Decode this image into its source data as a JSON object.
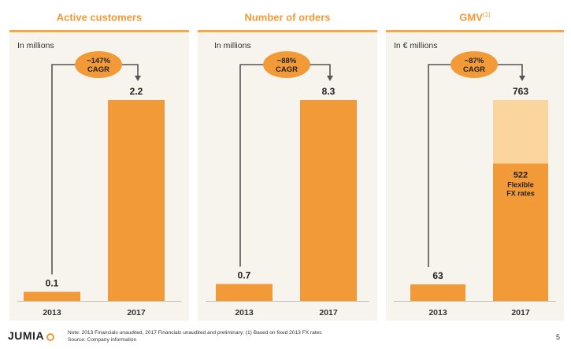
{
  "chart_data": [
    {
      "type": "bar",
      "title": "Active customers",
      "title_sup": "",
      "unit_label": "In millions",
      "categories": [
        "2013",
        "2017"
      ],
      "values": [
        0.1,
        2.2
      ],
      "value_labels": [
        "0.1",
        "2.2"
      ],
      "cagr_label": [
        "~147%",
        "CAGR"
      ]
    },
    {
      "type": "bar",
      "title": "Number of orders",
      "title_sup": "",
      "unit_label": "In millions",
      "categories": [
        "2013",
        "2017"
      ],
      "values": [
        0.7,
        8.3
      ],
      "value_labels": [
        "0.7",
        "8.3"
      ],
      "cagr_label": [
        "~88%",
        "CAGR"
      ]
    },
    {
      "type": "bar",
      "title": "GMV",
      "title_sup": "(1)",
      "unit_label": "In € millions",
      "categories": [
        "2013",
        "2017"
      ],
      "values": [
        63,
        763
      ],
      "value_labels": [
        "63",
        "763"
      ],
      "stacked_2017": {
        "value": 522,
        "label": "522",
        "note": [
          "Flexible",
          "FX rates"
        ]
      },
      "cagr_label": [
        "~87%",
        "CAGR"
      ]
    }
  ],
  "colors": {
    "accent": "#f29a38",
    "bar": "#f29a38",
    "bar_light": "#fbd59e",
    "panel_bg": "#f7f4ee",
    "arrow": "#555555"
  },
  "footer": {
    "logo": "JUMIA",
    "note_line1": "Note: 2013 Financials unaudited, 2017 Financials unaudited and preliminary; (1) Based on fixed 2013 FX rates",
    "note_line2": "Source: Company information",
    "page_number": "5"
  }
}
